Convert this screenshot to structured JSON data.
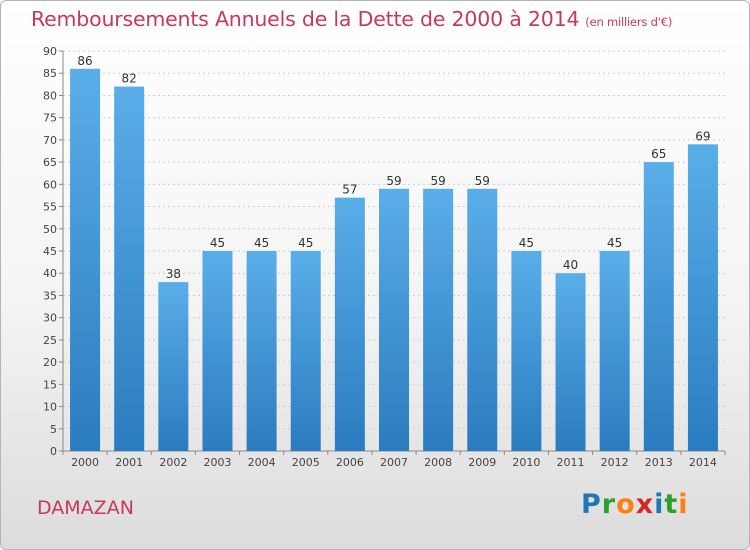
{
  "header": {
    "title": "Remboursements Annuels de la Dette de 2000 à 2014",
    "unit": "(en milliers d'€)"
  },
  "footer": {
    "commune": "DAMAZAN",
    "brand": "Proxiti",
    "brand_letters": [
      {
        "ch": "P",
        "color": "#1f77b4"
      },
      {
        "ch": "r",
        "color": "#2ca02c"
      },
      {
        "ch": "o",
        "color": "#ff7f0e"
      },
      {
        "ch": "x",
        "color": "#d62728"
      },
      {
        "ch": "i",
        "color": "#1f77b4"
      },
      {
        "ch": "t",
        "color": "#2ca02c"
      },
      {
        "ch": "i",
        "color": "#ff7f0e"
      }
    ]
  },
  "colors": {
    "bar_top": "#5aaee8",
    "bar_bottom": "#2a7cc0",
    "title": "#c8385c",
    "axis": "#888888",
    "grid": "#cfcfcf"
  },
  "chart_data": {
    "type": "bar",
    "categories": [
      "2000",
      "2001",
      "2002",
      "2003",
      "2004",
      "2005",
      "2006",
      "2007",
      "2008",
      "2009",
      "2010",
      "2011",
      "2012",
      "2013",
      "2014"
    ],
    "values": [
      86,
      82,
      38,
      45,
      45,
      45,
      57,
      59,
      59,
      59,
      45,
      40,
      45,
      65,
      69
    ],
    "ylim": [
      0,
      90
    ],
    "yticks": [
      0,
      5,
      10,
      15,
      20,
      25,
      30,
      35,
      40,
      45,
      50,
      55,
      60,
      65,
      70,
      75,
      80,
      85,
      90
    ],
    "grid": true
  }
}
